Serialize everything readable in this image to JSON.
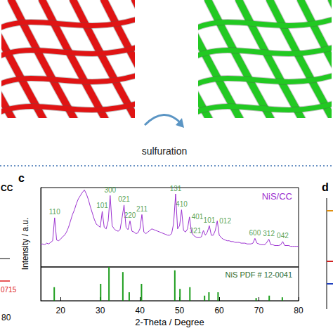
{
  "figure": {
    "illustration": {
      "process_label": "sulfuration",
      "colors": [
        "#e01414",
        "#22c922"
      ]
    },
    "fragment_left": {
      "texts": [
        "CC",
        "0715",
        "80"
      ]
    },
    "fragment_right": {
      "panel_label": "d"
    }
  },
  "chart_data": {
    "type": "line",
    "panel_label": "c",
    "xlabel": "2-Theta / Degree",
    "ylabel": "Intensity / a.u.",
    "xlim": [
      15,
      80
    ],
    "xticks": [
      20,
      30,
      40,
      50,
      60,
      70,
      80
    ],
    "ylim": [
      0,
      100
    ],
    "tick_labels": "x",
    "grid": false,
    "x": [
      15,
      15.5,
      16,
      16.5,
      17,
      17.5,
      18,
      18.5,
      19,
      19.5,
      20,
      20.5,
      21,
      21.5,
      22,
      22.5,
      23,
      23.5,
      24,
      24.5,
      25,
      25.5,
      26,
      26.5,
      27,
      27.5,
      28,
      28.5,
      29,
      29.5,
      30,
      30.5,
      31,
      31.5,
      32,
      32.5,
      33,
      33.5,
      34,
      34.5,
      35,
      35.5,
      36,
      36.5,
      37,
      37.5,
      38,
      38.5,
      39,
      39.5,
      40,
      40.5,
      41,
      41.5,
      42,
      42.5,
      43,
      43.5,
      44,
      44.5,
      45,
      45.5,
      46,
      46.5,
      47,
      47.5,
      48,
      48.5,
      49,
      49.5,
      50,
      50.5,
      51,
      51.5,
      52,
      52.5,
      53,
      53.5,
      54,
      54.5,
      55,
      55.5,
      56,
      56.5,
      57,
      57.5,
      58,
      58.5,
      59,
      59.5,
      60,
      60.5,
      61,
      61.5,
      62,
      62.5,
      63,
      63.5,
      64,
      64.5,
      65,
      65.5,
      66,
      66.5,
      67,
      67.5,
      68,
      68.5,
      69,
      69.5,
      70,
      70.5,
      71,
      71.5,
      72,
      72.5,
      73,
      73.5,
      74,
      74.5,
      75,
      75.5,
      76,
      76.5,
      77,
      77.5,
      78,
      78.5,
      79,
      79.5,
      80
    ],
    "series": [
      {
        "name": "NiS/CC",
        "color": "#9b30d0",
        "values": [
          28,
          29,
          28,
          30,
          29,
          31,
          33,
          62,
          34,
          33,
          35,
          38,
          40,
          44,
          50,
          58,
          66,
          72,
          80,
          86,
          90,
          94,
          97,
          92,
          85,
          76,
          68,
          60,
          54,
          52,
          50,
          70,
          50,
          48,
          58,
          90,
          52,
          48,
          46,
          45,
          47,
          62,
          78,
          50,
          47,
          58,
          45,
          44,
          42,
          43,
          48,
          66,
          44,
          42,
          44,
          46,
          48,
          47,
          46,
          45,
          44,
          43,
          42,
          41,
          40,
          40,
          42,
          55,
          92,
          48,
          52,
          72,
          46,
          44,
          48,
          63,
          44,
          40,
          38,
          37,
          37,
          38,
          46,
          40,
          44,
          52,
          40,
          40,
          46,
          58,
          40,
          37,
          35,
          34,
          33,
          33,
          32,
          32,
          31,
          31,
          31,
          30,
          30,
          30,
          29,
          29,
          29,
          30,
          36,
          30,
          29,
          28,
          28,
          28,
          31,
          35,
          28,
          28,
          27,
          27,
          27,
          28,
          32,
          27,
          27,
          27,
          26,
          26,
          26,
          26,
          26
        ]
      }
    ],
    "peak_labels": {
      "color": "#2a8a2a",
      "items": [
        {
          "label": "110",
          "x": 18.5
        },
        {
          "label": "101",
          "x": 30.5
        },
        {
          "label": "300",
          "x": 32.5
        },
        {
          "label": "021",
          "x": 36
        },
        {
          "label": "220",
          "x": 37.5
        },
        {
          "label": "211",
          "x": 40.5
        },
        {
          "label": "131",
          "x": 49
        },
        {
          "label": "410",
          "x": 50.5
        },
        {
          "label": "401",
          "x": 52.5
        },
        {
          "label": "321",
          "x": 56
        },
        {
          "label": "101",
          "x": 57.5
        },
        {
          "label": "012",
          "x": 59.5
        },
        {
          "label": "600",
          "x": 69
        },
        {
          "label": "312",
          "x": 72.5
        },
        {
          "label": "042",
          "x": 76
        }
      ]
    },
    "reference": {
      "type": "bar",
      "name": "NiS PDF # 12-0041",
      "color": "#1e9e1e",
      "ylim": [
        0,
        100
      ],
      "x": [
        18.4,
        30.1,
        32.2,
        35.7,
        37.3,
        40.4,
        48.8,
        50.1,
        52.6,
        56.3,
        57.4,
        59.7,
        69.3,
        72.6,
        75.9
      ],
      "values": [
        40,
        50,
        100,
        85,
        25,
        50,
        90,
        35,
        40,
        15,
        25,
        25,
        8,
        15,
        10
      ]
    }
  }
}
